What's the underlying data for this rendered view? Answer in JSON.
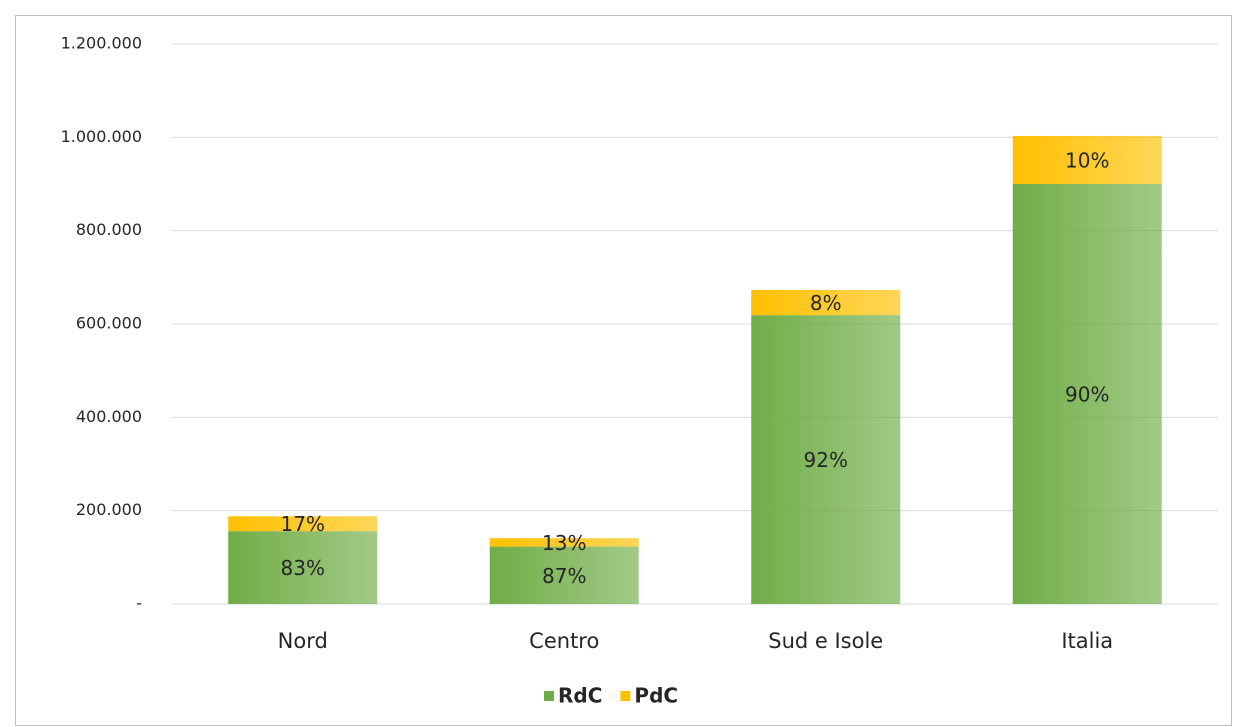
{
  "chart_data": {
    "type": "stacked-bar",
    "categories": [
      "Nord",
      "Centro",
      "Sud e Isole",
      "Italia"
    ],
    "series": [
      {
        "name": "RdC",
        "color": "#70ad47",
        "values": [
          156000,
          123000,
          619000,
          900000
        ],
        "data_labels": [
          "83%",
          "87%",
          "92%",
          "90%"
        ]
      },
      {
        "name": "PdC",
        "color": "#ffc000",
        "values": [
          32000,
          18000,
          54000,
          103000
        ],
        "data_labels": [
          "17%",
          "13%",
          "8%",
          "10%"
        ]
      }
    ],
    "ylim": [
      0,
      1200000
    ],
    "yticks": [
      {
        "value": 0,
        "label": "-"
      },
      {
        "value": 200000,
        "label": "200.000"
      },
      {
        "value": 400000,
        "label": "400.000"
      },
      {
        "value": 600000,
        "label": "600.000"
      },
      {
        "value": 800000,
        "label": "800.000"
      },
      {
        "value": 1000000,
        "label": "1.000.000"
      },
      {
        "value": 1200000,
        "label": "1.200.000"
      }
    ],
    "grid": true,
    "legend": "bottom"
  }
}
